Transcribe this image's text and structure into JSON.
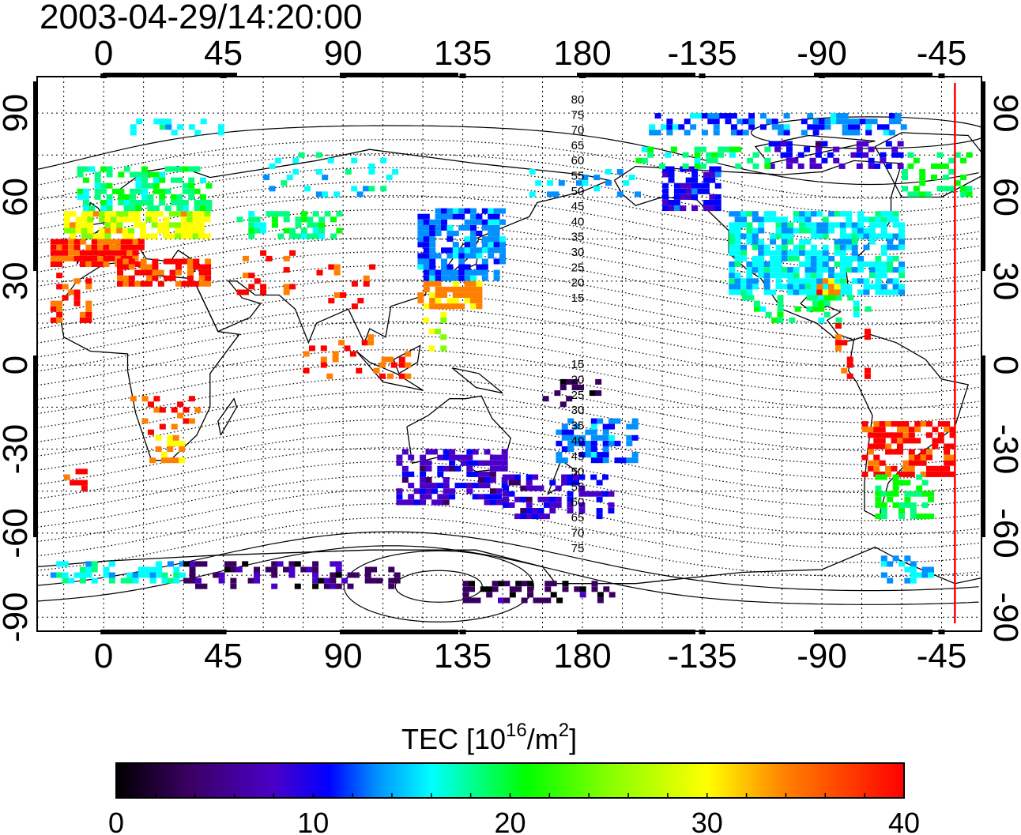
{
  "title": "2003-04-29/14:20:00",
  "map": {
    "lon_top_labels": [
      "0",
      "45",
      "90",
      "135",
      "180",
      "-135",
      "-90",
      "-45"
    ],
    "lon_bottom_labels": [
      "0",
      "45",
      "90",
      "135",
      "180",
      "-135",
      "-90",
      "-45"
    ],
    "lat_labels": [
      "90",
      "60",
      "30",
      "0",
      "-30",
      "-60",
      "-90"
    ],
    "lat_values": [
      90,
      60,
      30,
      0,
      -30,
      -60,
      -90
    ],
    "lon_values": [
      0,
      45,
      90,
      135,
      180,
      225,
      270,
      315
    ],
    "lon_range": [
      -25,
      330
    ],
    "lat_range": [
      -95,
      103
    ],
    "contour_labels_north": [
      "80",
      "75",
      "70",
      "65",
      "60",
      "55",
      "50",
      "45",
      "40",
      "35",
      "30",
      "25",
      "20",
      "15"
    ],
    "contour_labels_south": [
      "15",
      "20",
      "25",
      "30",
      "35",
      "40",
      "45",
      "50",
      "55",
      "60",
      "65",
      "70",
      "75"
    ],
    "terminator_lon": 320,
    "terminator_color": "#ff0000"
  },
  "colorbar": {
    "title_prefix": "TEC  [10",
    "title_exp1": "16",
    "title_mid": "/m",
    "title_exp2": "2",
    "title_suffix": "]",
    "min": 0,
    "max": 40,
    "tick_labels": [
      "0",
      "10",
      "20",
      "30",
      "40"
    ],
    "tick_values": [
      0,
      10,
      20,
      30,
      40
    ],
    "colormap": [
      "#000000",
      "#3a0060",
      "#4a00c8",
      "#0000ff",
      "#0090ff",
      "#00ffff",
      "#00ff80",
      "#00ff00",
      "#80ff00",
      "#ffff00",
      "#ff8000",
      "#ff0000"
    ]
  }
}
